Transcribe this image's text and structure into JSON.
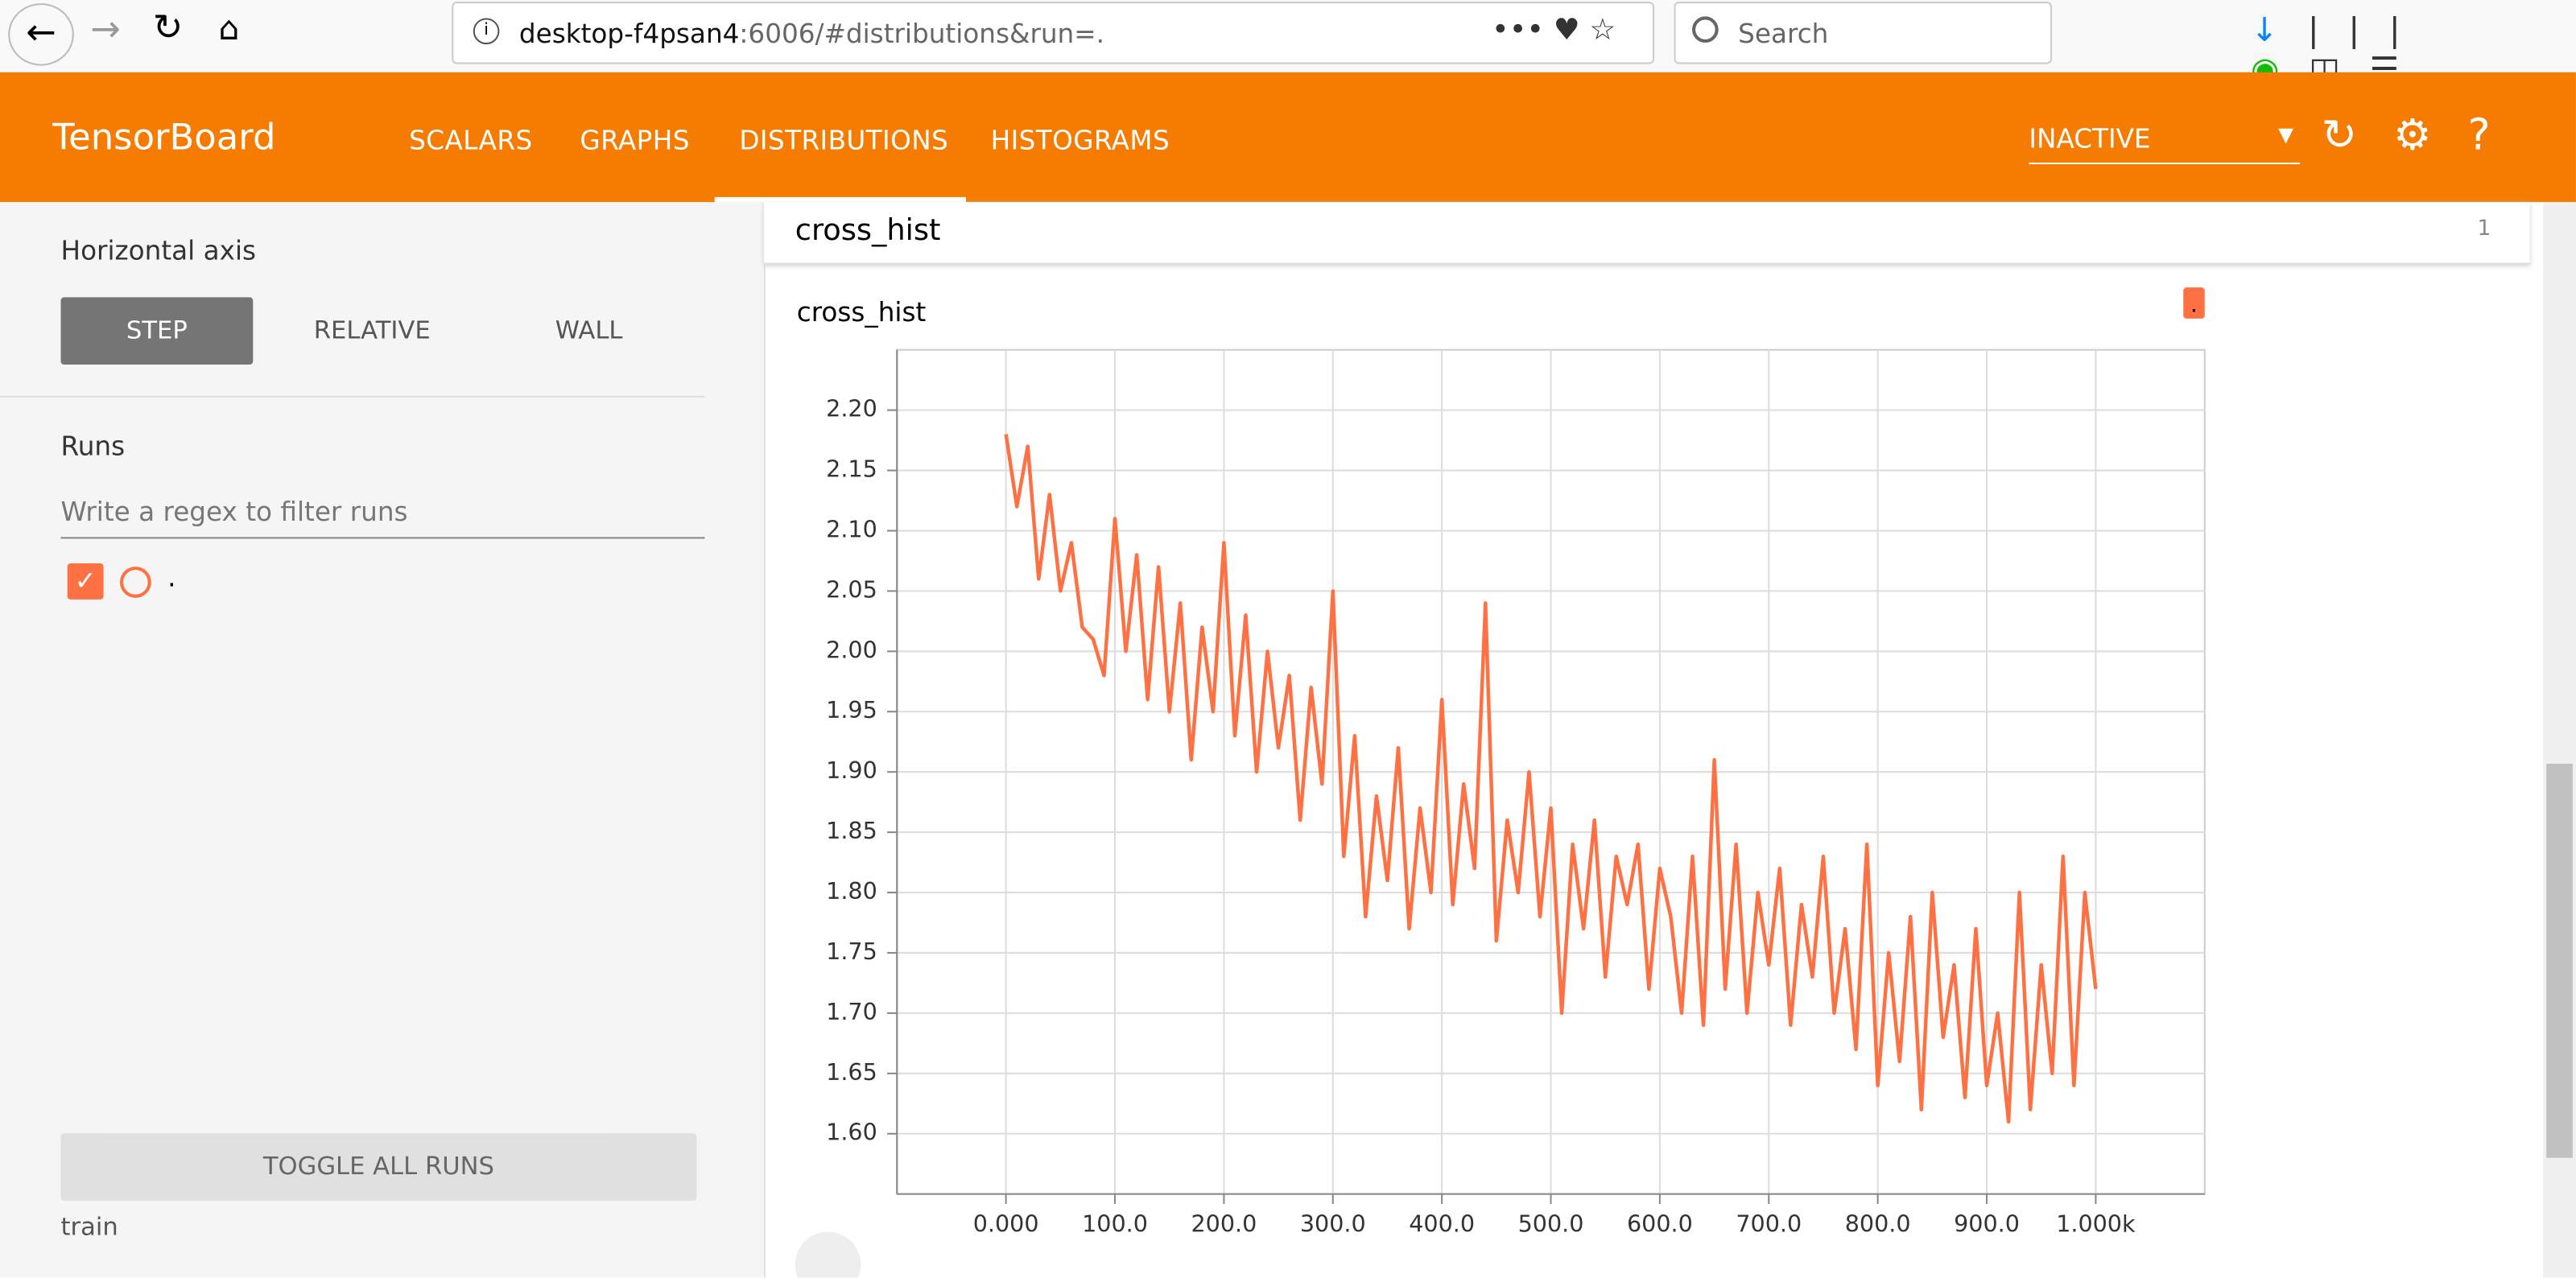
{
  "browser": {
    "url_host": "desktop-f4psan4",
    "url_rest": ":6006/#distributions&run=.",
    "search_placeholder": "Search"
  },
  "header": {
    "title": "TensorBoard",
    "tabs": [
      "SCALARS",
      "GRAPHS",
      "DISTRIBUTIONS",
      "HISTOGRAMS"
    ],
    "run_selector": "INACTIVE"
  },
  "sidebar": {
    "horizontal_axis_label": "Horizontal axis",
    "axis_options": [
      "STEP",
      "RELATIVE",
      "WALL"
    ],
    "runs_label": "Runs",
    "filter_placeholder": "Write a regex to filter runs",
    "runs": [
      "."
    ],
    "toggle_all": "TOGGLE ALL RUNS",
    "footer_run": "train"
  },
  "panel": {
    "title": "cross_hist",
    "count": "1"
  },
  "chart_data": {
    "type": "line",
    "title": "cross_hist",
    "x": [
      0,
      10,
      20,
      30,
      40,
      50,
      60,
      70,
      80,
      90,
      100,
      110,
      120,
      130,
      140,
      150,
      160,
      170,
      180,
      190,
      200,
      210,
      220,
      230,
      240,
      250,
      260,
      270,
      280,
      290,
      300,
      310,
      320,
      330,
      340,
      350,
      360,
      370,
      380,
      390,
      400,
      410,
      420,
      430,
      440,
      450,
      460,
      470,
      480,
      490,
      500,
      510,
      520,
      530,
      540,
      550,
      560,
      570,
      580,
      590,
      600,
      610,
      620,
      630,
      640,
      650,
      660,
      670,
      680,
      690,
      700,
      710,
      720,
      730,
      740,
      750,
      760,
      770,
      780,
      790,
      800,
      810,
      820,
      830,
      840,
      850,
      860,
      870,
      880,
      890,
      900,
      910,
      920,
      930,
      940,
      950,
      960,
      970,
      980,
      990,
      1000
    ],
    "series": [
      {
        "name": ".",
        "color": "#ff7043",
        "values": [
          2.18,
          2.12,
          2.17,
          2.06,
          2.13,
          2.05,
          2.09,
          2.02,
          2.01,
          1.98,
          2.11,
          2.0,
          2.08,
          1.96,
          2.07,
          1.95,
          2.04,
          1.91,
          2.02,
          1.95,
          2.09,
          1.93,
          2.03,
          1.9,
          2.0,
          1.92,
          1.98,
          1.86,
          1.97,
          1.89,
          2.05,
          1.83,
          1.93,
          1.78,
          1.88,
          1.81,
          1.92,
          1.77,
          1.87,
          1.8,
          1.96,
          1.79,
          1.89,
          1.82,
          2.04,
          1.76,
          1.86,
          1.8,
          1.9,
          1.78,
          1.87,
          1.7,
          1.84,
          1.77,
          1.86,
          1.73,
          1.83,
          1.79,
          1.84,
          1.72,
          1.82,
          1.78,
          1.7,
          1.83,
          1.69,
          1.91,
          1.72,
          1.84,
          1.7,
          1.8,
          1.74,
          1.82,
          1.69,
          1.79,
          1.73,
          1.83,
          1.7,
          1.77,
          1.67,
          1.84,
          1.64,
          1.75,
          1.66,
          1.78,
          1.62,
          1.8,
          1.68,
          1.74,
          1.63,
          1.77,
          1.64,
          1.7,
          1.61,
          1.8,
          1.62,
          1.74,
          1.65,
          1.83,
          1.64,
          1.8,
          1.72
        ]
      }
    ],
    "xlim": [
      -100,
      1100
    ],
    "xticks": [
      {
        "value": 0,
        "label": "0.000"
      },
      {
        "value": 100,
        "label": "100.0"
      },
      {
        "value": 200,
        "label": "200.0"
      },
      {
        "value": 300,
        "label": "300.0"
      },
      {
        "value": 400,
        "label": "400.0"
      },
      {
        "value": 500,
        "label": "500.0"
      },
      {
        "value": 600,
        "label": "600.0"
      },
      {
        "value": 700,
        "label": "700.0"
      },
      {
        "value": 800,
        "label": "800.0"
      },
      {
        "value": 900,
        "label": "900.0"
      },
      {
        "value": 1000,
        "label": "1.000k"
      }
    ],
    "ylim": [
      1.55,
      2.25
    ],
    "yticks": [
      {
        "value": 1.6,
        "label": "1.60"
      },
      {
        "value": 1.65,
        "label": "1.65"
      },
      {
        "value": 1.7,
        "label": "1.70"
      },
      {
        "value": 1.75,
        "label": "1.75"
      },
      {
        "value": 1.8,
        "label": "1.80"
      },
      {
        "value": 1.85,
        "label": "1.85"
      },
      {
        "value": 1.9,
        "label": "1.90"
      },
      {
        "value": 1.95,
        "label": "1.95"
      },
      {
        "value": 2.0,
        "label": "2.00"
      },
      {
        "value": 2.05,
        "label": "2.05"
      },
      {
        "value": 2.1,
        "label": "2.10"
      },
      {
        "value": 2.15,
        "label": "2.15"
      },
      {
        "value": 2.2,
        "label": "2.20"
      }
    ],
    "grid": true
  }
}
